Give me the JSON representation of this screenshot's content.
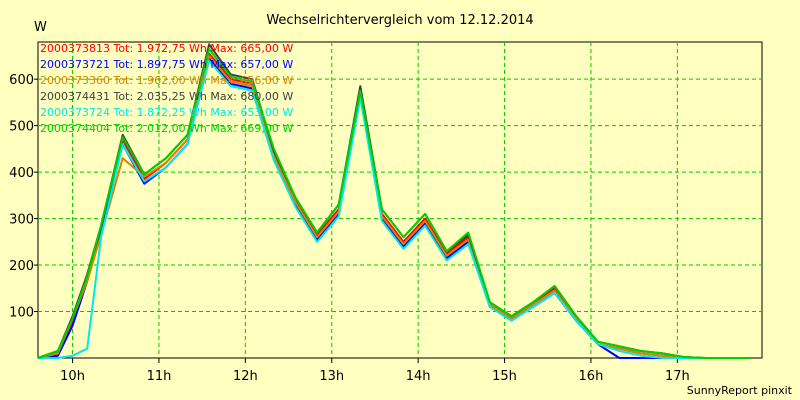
{
  "chart_data": {
    "type": "line",
    "title": "Wechselrichtervergleich vom 12.12.2014",
    "ylabel": "W",
    "xlabel": "",
    "footer": "SunnyReport pinxit",
    "ylim": [
      0,
      680
    ],
    "y_ticks": [
      100,
      200,
      300,
      400,
      500,
      600
    ],
    "xlim": [
      9.6,
      17.98
    ],
    "x_ticks": [
      {
        "value": 10,
        "label": "10h"
      },
      {
        "value": 11,
        "label": "11h"
      },
      {
        "value": 12,
        "label": "12h"
      },
      {
        "value": 13,
        "label": "13h"
      },
      {
        "value": 14,
        "label": "14h"
      },
      {
        "value": 15,
        "label": "15h"
      },
      {
        "value": 16,
        "label": "16h"
      },
      {
        "value": 17,
        "label": "17h"
      }
    ],
    "grid": true,
    "legend_position": "top-left",
    "x": [
      9.6,
      9.83,
      10.0,
      10.17,
      10.33,
      10.58,
      10.83,
      11.08,
      11.33,
      11.58,
      11.83,
      12.08,
      12.33,
      12.58,
      12.83,
      13.08,
      13.33,
      13.58,
      13.83,
      14.08,
      14.33,
      14.58,
      14.83,
      15.08,
      15.33,
      15.58,
      15.83,
      16.08,
      16.33,
      16.58,
      16.83,
      17.08,
      17.33,
      17.58,
      17.83
    ],
    "series": [
      {
        "name": "2000373813 Tot: 1.972,75 Wh Max: 665,00 W",
        "color": "#ff0000",
        "values": [
          0,
          10,
          80,
          170,
          280,
          470,
          385,
          420,
          470,
          655,
          600,
          590,
          440,
          340,
          265,
          320,
          575,
          310,
          250,
          300,
          225,
          260,
          115,
          85,
          115,
          150,
          85,
          30,
          20,
          10,
          5,
          2,
          0,
          0,
          0
        ]
      },
      {
        "name": "2000373721 Tot: 1.897,75 Wh Max: 657,00 W",
        "color": "#0000ff",
        "values": [
          0,
          5,
          70,
          165,
          275,
          460,
          375,
          410,
          460,
          645,
          590,
          580,
          430,
          330,
          255,
          310,
          565,
          300,
          240,
          290,
          215,
          250,
          110,
          85,
          110,
          140,
          80,
          30,
          0,
          0,
          0,
          0,
          0,
          0,
          0
        ]
      },
      {
        "name": "2000373360 Tot: 1.962,00 Wh Max: 656,00 W",
        "color": "#e08000",
        "values": [
          0,
          10,
          85,
          165,
          265,
          430,
          390,
          420,
          470,
          650,
          595,
          585,
          435,
          335,
          260,
          315,
          570,
          305,
          245,
          295,
          220,
          255,
          115,
          85,
          115,
          145,
          85,
          30,
          20,
          10,
          5,
          2,
          0,
          0,
          0
        ]
      },
      {
        "name": "2000374431 Tot: 2.035,25 Wh Max: 680,00 W",
        "color": "#404040",
        "values": [
          0,
          15,
          90,
          180,
          285,
          480,
          395,
          430,
          480,
          675,
          610,
          600,
          445,
          345,
          270,
          330,
          585,
          320,
          260,
          310,
          230,
          265,
          120,
          90,
          120,
          155,
          90,
          35,
          25,
          15,
          10,
          2,
          0,
          0,
          0
        ]
      },
      {
        "name": "2000373724 Tot: 1.872,25 Wh Max: 653,00 W",
        "color": "#00e8e8",
        "values": [
          0,
          0,
          5,
          20,
          260,
          460,
          380,
          410,
          460,
          640,
          585,
          575,
          425,
          325,
          250,
          305,
          560,
          295,
          235,
          285,
          210,
          245,
          110,
          80,
          110,
          140,
          80,
          30,
          15,
          5,
          0,
          0,
          0,
          0,
          0
        ]
      },
      {
        "name": "2000374404 Tot: 2.012,00 Wh Max: 669,00 W",
        "color": "#00d000",
        "values": [
          0,
          15,
          85,
          175,
          285,
          475,
          395,
          430,
          480,
          665,
          605,
          595,
          450,
          345,
          270,
          330,
          575,
          320,
          260,
          310,
          230,
          270,
          120,
          90,
          120,
          155,
          90,
          35,
          25,
          15,
          10,
          2,
          0,
          0,
          0
        ]
      }
    ]
  }
}
